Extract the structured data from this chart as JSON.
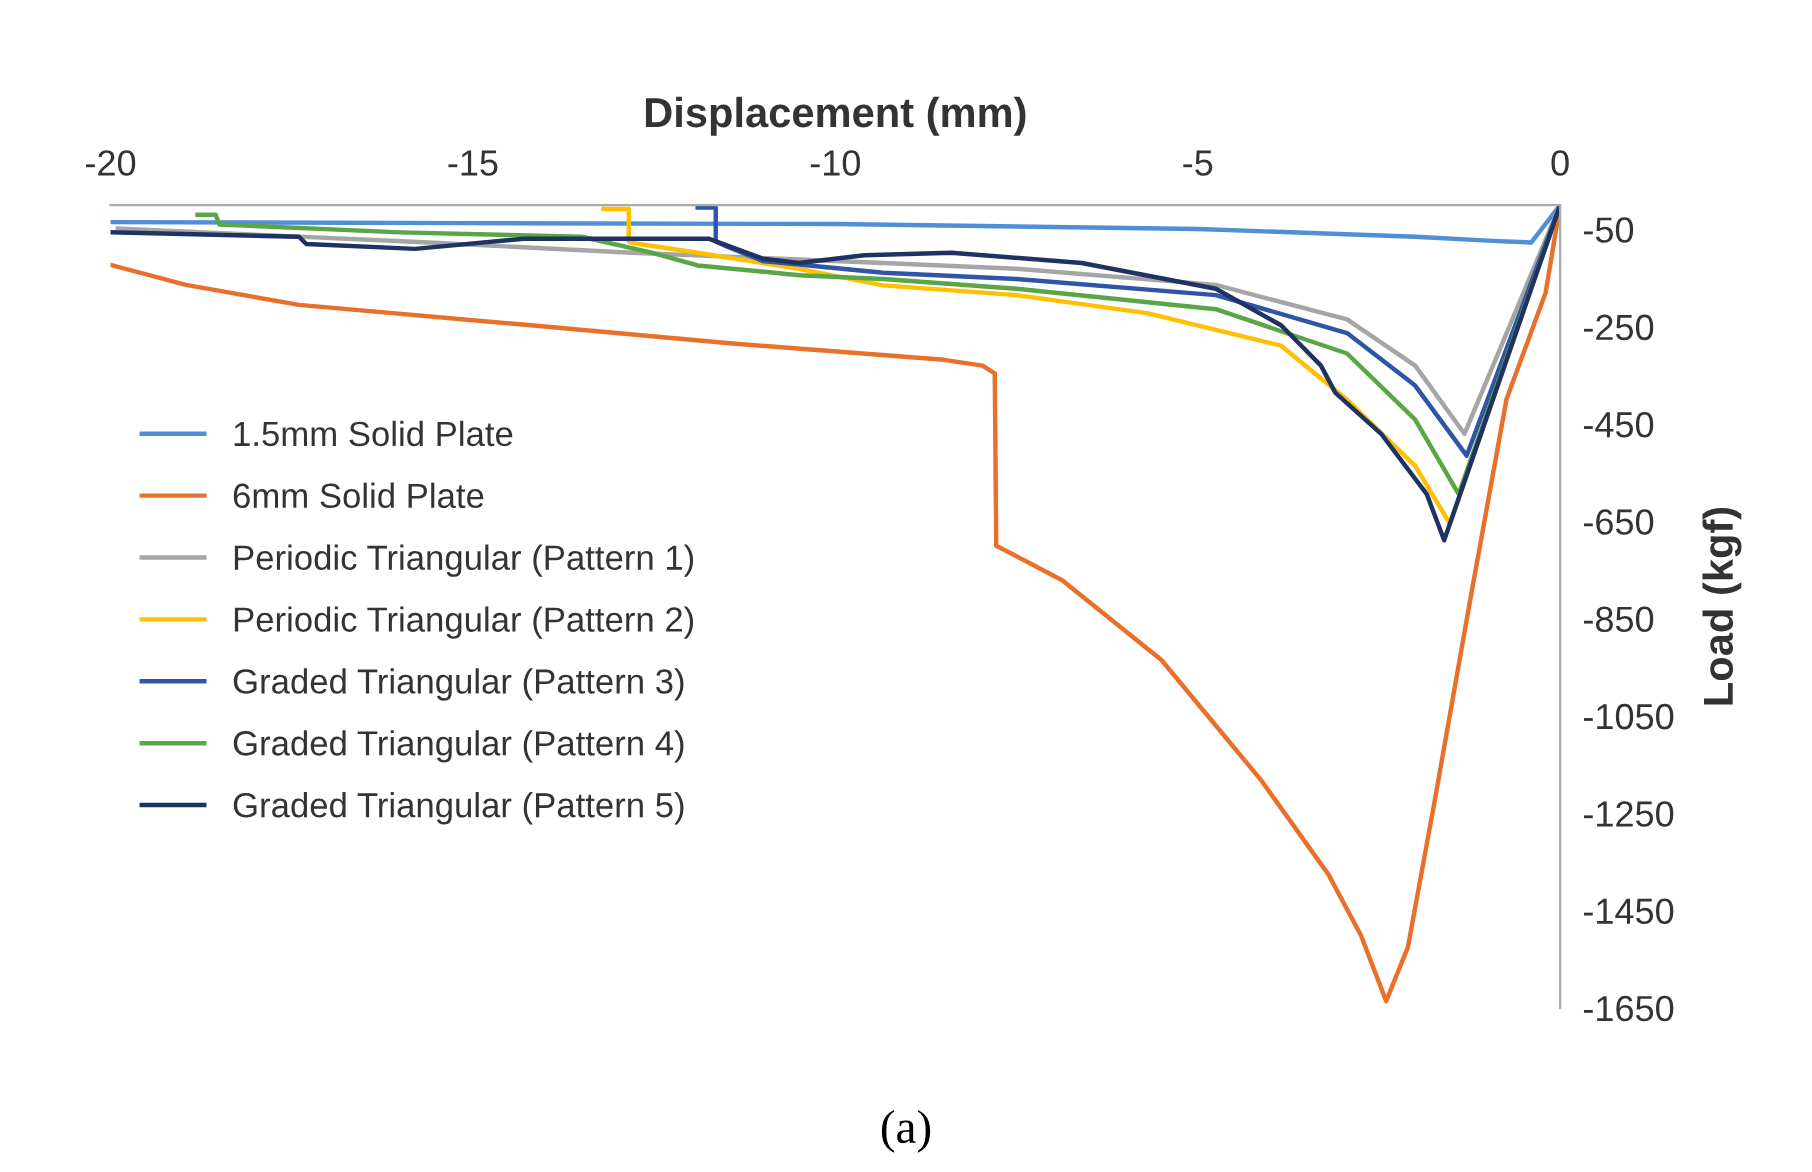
{
  "chart_data": {
    "type": "line",
    "xlabel": "Displacement (mm)",
    "ylabel": "Load (kgf)",
    "annotations": [
      "(a)"
    ],
    "xlim": [
      -20,
      0
    ],
    "xticks": [
      -20,
      -15,
      -10,
      -5,
      0
    ],
    "ylim": [
      -1650,
      0
    ],
    "yticks": [
      -50,
      -250,
      -450,
      -650,
      -850,
      -1050,
      -1250,
      -1450,
      -1650
    ],
    "grid": false,
    "legend": "center left",
    "marker": "none",
    "line_style": "solid",
    "series": [
      {
        "name": "1.5mm Solid Plate",
        "color": "#4f8fd6",
        "x": [
          0,
          -0.4,
          -1,
          -2,
          -5,
          -10,
          -15,
          -20
        ],
        "values": [
          0,
          -77,
          -73,
          -65,
          -49,
          -39,
          -37,
          -35
        ]
      },
      {
        "name": "6mm Solid Plate",
        "color": "#e8702a",
        "x": [
          0,
          -0.2,
          -0.74,
          -1.24,
          -1.73,
          -2.1,
          -2.4,
          -2.75,
          -3.2,
          -4.12,
          -5.5,
          -6.87,
          -7.78,
          -7.8,
          -7.97,
          -8.5,
          -11.46,
          -14.2,
          -17.4,
          -18.96,
          -20
        ],
        "values": [
          0,
          -180,
          -399,
          -811,
          -1224,
          -1525,
          -1636,
          -1500,
          -1375,
          -1183,
          -935,
          -771,
          -700,
          -346,
          -330,
          -318,
          -284,
          -247,
          -205,
          -164,
          -123
        ]
      },
      {
        "name": "Periodic Triangular (Pattern 1)",
        "color": "#a5a5a5",
        "x": [
          0,
          -1.32,
          -2.0,
          -2.94,
          -4.75,
          -7.5,
          -9.34,
          -12.8,
          -15.6,
          -19.9
        ],
        "values": [
          0,
          -470,
          -330,
          -235,
          -164,
          -131,
          -119,
          -98,
          -77,
          -48
        ]
      },
      {
        "name": "Periodic Triangular (Pattern 2)",
        "color": "#ffc000",
        "x": [
          0,
          -1.52,
          -2.0,
          -2.94,
          -3.85,
          -5.7,
          -7.5,
          -9.34,
          -10.5,
          -11.9,
          -12.8,
          -12.85,
          -12.85,
          -13.2
        ],
        "values": [
          0,
          -655,
          -536,
          -400,
          -289,
          -222,
          -185,
          -165,
          -131,
          -98,
          -78,
          -75,
          -8,
          -8
        ]
      },
      {
        "name": "Graded Triangular (Pattern 3)",
        "color": "#2e55a6",
        "x": [
          0,
          -1.29,
          -2.0,
          -2.94,
          -4.75,
          -7.5,
          -9.34,
          -11.0,
          -11.5,
          -11.65,
          -11.65,
          -11.9
        ],
        "values": [
          0,
          -515,
          -371,
          -263,
          -185,
          -152,
          -139,
          -115,
          -85,
          -75,
          -5,
          -5
        ]
      },
      {
        "name": "Graded Triangular (Pattern 4)",
        "color": "#5aa545",
        "x": [
          0,
          -1.4,
          -2.0,
          -2.94,
          -4.75,
          -7.5,
          -9.34,
          -10.5,
          -11.9,
          -12.55,
          -13.5,
          -16,
          -18.5,
          -18.55,
          -18.8
        ],
        "values": [
          0,
          -594,
          -441,
          -305,
          -214,
          -172,
          -152,
          -144,
          -124,
          -97,
          -65,
          -56,
          -40,
          -20,
          -20
        ]
      },
      {
        "name": "Graded Triangular (Pattern 5)",
        "color": "#1f3264",
        "x": [
          0,
          -1.6,
          -1.84,
          -2.47,
          -3.1,
          -3.3,
          -3.85,
          -4.75,
          -6.6,
          -8.4,
          -9.6,
          -10.5,
          -11.0,
          -11.75,
          -14.3,
          -15.8,
          -17.3,
          -17.4,
          -20
        ],
        "values": [
          0,
          -689,
          -594,
          -470,
          -386,
          -330,
          -247,
          -172,
          -119,
          -98,
          -103,
          -119,
          -110,
          -69,
          -69,
          -90,
          -80,
          -65,
          -56
        ]
      }
    ]
  }
}
